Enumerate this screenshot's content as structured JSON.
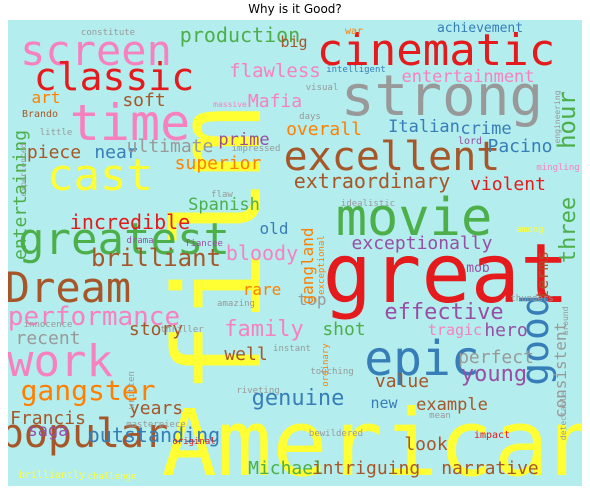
{
  "title": "Why is it Good?",
  "background_color": "#b3eded",
  "words": [
    {
      "text": "film",
      "color": "#ffff33"
    },
    {
      "text": "American",
      "color": "#ffff33"
    },
    {
      "text": "great",
      "color": "#e41a1c"
    },
    {
      "text": "strong",
      "color": "#999999"
    },
    {
      "text": "movie",
      "color": "#4daf4a"
    },
    {
      "text": "cinematic",
      "color": "#e41a1c"
    },
    {
      "text": "time",
      "color": "#f781bf"
    },
    {
      "text": "screen",
      "color": "#f781bf"
    },
    {
      "text": "classic",
      "color": "#e41a1c"
    },
    {
      "text": "excellent",
      "color": "#a65628"
    },
    {
      "text": "greatest",
      "color": "#4daf4a"
    },
    {
      "text": "epic",
      "color": "#377eb8"
    },
    {
      "text": "Dream",
      "color": "#a65628"
    },
    {
      "text": "work",
      "color": "#f781bf"
    },
    {
      "text": "popular",
      "color": "#a65628"
    },
    {
      "text": "cast",
      "color": "#ffff33"
    },
    {
      "text": "gangster",
      "color": "#ff7f00"
    },
    {
      "text": "good",
      "color": "#377eb8"
    },
    {
      "text": "performance",
      "color": "#f781bf"
    },
    {
      "text": "brilliant",
      "color": "#a65628"
    },
    {
      "text": "three",
      "color": "#4daf4a"
    },
    {
      "text": "hour",
      "color": "#4daf4a"
    },
    {
      "text": "extraordinary",
      "color": "#a65628"
    },
    {
      "text": "young",
      "color": "#984ea3"
    },
    {
      "text": "production",
      "color": "#4daf4a"
    },
    {
      "text": "entertainment",
      "color": "#f781bf"
    },
    {
      "text": "flawless",
      "color": "#f781bf"
    },
    {
      "text": "piece",
      "color": "#a65628"
    },
    {
      "text": "near",
      "color": "#377eb8"
    },
    {
      "text": "ultimate",
      "color": "#999999"
    },
    {
      "text": "superior",
      "color": "#ff7f00"
    },
    {
      "text": "incredible",
      "color": "#e41a1c"
    },
    {
      "text": "entertaining",
      "color": "#4daf4a"
    },
    {
      "text": "Spanish",
      "color": "#4daf4a"
    },
    {
      "text": "bloody",
      "color": "#f781bf"
    },
    {
      "text": "exceptionally",
      "color": "#984ea3"
    },
    {
      "text": "family",
      "color": "#f781bf"
    },
    {
      "text": "effective",
      "color": "#984ea3"
    },
    {
      "text": "recent",
      "color": "#999999"
    },
    {
      "text": "story",
      "color": "#a65628"
    },
    {
      "text": "shot",
      "color": "#4daf4a"
    },
    {
      "text": "well",
      "color": "#a65628"
    },
    {
      "text": "perfect",
      "color": "#999999"
    },
    {
      "text": "hero",
      "color": "#984ea3"
    },
    {
      "text": "genuine",
      "color": "#377eb8"
    },
    {
      "text": "value",
      "color": "#a65628"
    },
    {
      "text": "Francis",
      "color": "#a65628"
    },
    {
      "text": "years",
      "color": "#a65628"
    },
    {
      "text": "outstanding",
      "color": "#377eb8"
    },
    {
      "text": "Michael",
      "color": "#4daf4a"
    },
    {
      "text": "intriguing",
      "color": "#a65628"
    },
    {
      "text": "narrative",
      "color": "#a65628"
    },
    {
      "text": "example",
      "color": "#a65628"
    },
    {
      "text": "look",
      "color": "#a65628"
    },
    {
      "text": "saga",
      "color": "#984ea3"
    },
    {
      "text": "new",
      "color": "#377eb8"
    },
    {
      "text": "consistent",
      "color": "#999999"
    },
    {
      "text": "terms",
      "color": "#a65628"
    },
    {
      "text": "Pacino",
      "color": "#377eb8"
    },
    {
      "text": "violent",
      "color": "#e41a1c"
    },
    {
      "text": "crime",
      "color": "#377eb8"
    },
    {
      "text": "Italian",
      "color": "#377eb8"
    },
    {
      "text": "overall",
      "color": "#ff7f00"
    },
    {
      "text": "prime",
      "color": "#984ea3"
    },
    {
      "text": "Mafia",
      "color": "#f781bf"
    },
    {
      "text": "soft",
      "color": "#a65628"
    },
    {
      "text": "art",
      "color": "#ff7f00"
    },
    {
      "text": "big",
      "color": "#a65628"
    },
    {
      "text": "old",
      "color": "#377eb8"
    },
    {
      "text": "top",
      "color": "#999999"
    },
    {
      "text": "rare",
      "color": "#ff7f00"
    },
    {
      "text": "gangland",
      "color": "#ff7f00"
    },
    {
      "text": "tragic",
      "color": "#f781bf"
    },
    {
      "text": "mob",
      "color": "#984ea3"
    },
    {
      "text": "achievement",
      "color": "#377eb8"
    },
    {
      "text": "intelligent",
      "color": "#377eb8"
    },
    {
      "text": "visual",
      "color": "#999999"
    },
    {
      "text": "massive",
      "color": "#f781bf"
    },
    {
      "text": "days",
      "color": "#999999"
    },
    {
      "text": "lord",
      "color": "#984ea3"
    },
    {
      "text": "constitute",
      "color": "#999999"
    },
    {
      "text": "war",
      "color": "#ff7f00"
    },
    {
      "text": "Brando",
      "color": "#a65628"
    },
    {
      "text": "little",
      "color": "#999999"
    },
    {
      "text": "impressed",
      "color": "#999999"
    },
    {
      "text": "flaw",
      "color": "#999999"
    },
    {
      "text": "idealistic",
      "color": "#999999"
    },
    {
      "text": "experienced",
      "color": "#999999"
    },
    {
      "text": "drama",
      "color": "#984ea3"
    },
    {
      "text": "fiancee",
      "color": "#984ea3"
    },
    {
      "text": "exceptional",
      "color": "#ff7f00"
    },
    {
      "text": "ordinary",
      "color": "#ff7f00"
    },
    {
      "text": "amazing",
      "color": "#999999"
    },
    {
      "text": "thriller",
      "color": "#999999"
    },
    {
      "text": "innocence",
      "color": "#999999"
    },
    {
      "text": "written",
      "color": "#999999"
    },
    {
      "text": "instant",
      "color": "#999999"
    },
    {
      "text": "riveting",
      "color": "#999999"
    },
    {
      "text": "touching",
      "color": "#999999"
    },
    {
      "text": "masterpiece",
      "color": "#999999"
    },
    {
      "text": "bewildered",
      "color": "#999999"
    },
    {
      "text": "mean",
      "color": "#999999"
    },
    {
      "text": "impact",
      "color": "#e41a1c"
    },
    {
      "text": "original",
      "color": "#e41a1c"
    },
    {
      "text": "brilliantly",
      "color": "#ffff33"
    },
    {
      "text": "challenge",
      "color": "#ffff33"
    },
    {
      "text": "thunders",
      "color": "#999999"
    },
    {
      "text": "around",
      "color": "#999999"
    },
    {
      "text": "detectable",
      "color": "#999999"
    },
    {
      "text": "engineering",
      "color": "#999999"
    },
    {
      "text": "mingling",
      "color": "#f781bf"
    },
    {
      "text": "among",
      "color": "#ffff33"
    }
  ]
}
